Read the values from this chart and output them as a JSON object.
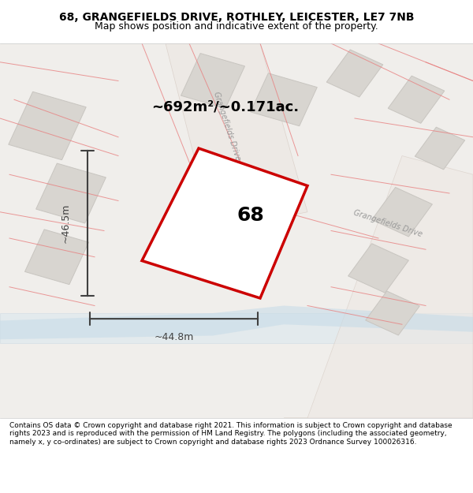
{
  "title_line1": "68, GRANGEFIELDS DRIVE, ROTHLEY, LEICESTER, LE7 7NB",
  "title_line2": "Map shows position and indicative extent of the property.",
  "footer_text": "Contains OS data © Crown copyright and database right 2021. This information is subject to Crown copyright and database rights 2023 and is reproduced with the permission of HM Land Registry. The polygons (including the associated geometry, namely x, y co-ordinates) are subject to Crown copyright and database rights 2023 Ordnance Survey 100026316.",
  "area_label": "~692m²/~0.171ac.",
  "number_label": "68",
  "dim_h_label": "~46.5m",
  "dim_w_label": "~44.8m",
  "bg_color": "#f5f3f0",
  "map_bg": "#f0eeeb",
  "road_color": "#e8e0d8",
  "building_fill": "#d8d5d0",
  "building_edge": "#c8c5c0",
  "highlight_poly_color": "#cc0000",
  "highlight_poly_fill": "#f8f6f4",
  "street_label1": "Grangefields Drive",
  "street_label2": "Grangefields Drive",
  "dim_color": "#404040",
  "road_line_color": "#d4c8c0",
  "water_color": "#c8dce8"
}
